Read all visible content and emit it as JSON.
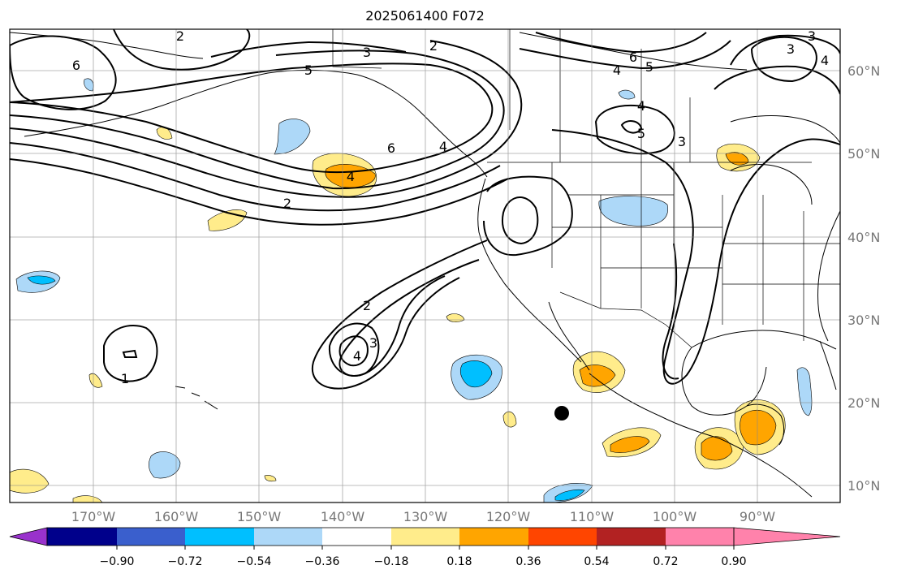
{
  "title": "2025061400 F072",
  "lon_labels": [
    "170°W",
    "160°W",
    "150°W",
    "140°W",
    "130°W",
    "120°W",
    "110°W",
    "100°W",
    "90°W"
  ],
  "lat_labels": [
    "60°N",
    "50°N",
    "40°N",
    "30°N",
    "20°N",
    "10°N"
  ],
  "colorbar": {
    "ticks": [
      "−0.90",
      "−0.72",
      "−0.54",
      "−0.36",
      "−0.18",
      "0.18",
      "0.36",
      "0.54",
      "0.72",
      "0.90"
    ],
    "colors": [
      "#9932cc",
      "#00008b",
      "#3a5fcd",
      "#00bfff",
      "#add8f8",
      "#ffffff",
      "#ffec8b",
      "#ffa500",
      "#ff4500",
      "#b22222",
      "#ff82ab"
    ]
  },
  "contour_labels": [
    "2",
    "3",
    "2",
    "6",
    "5",
    "4",
    "5",
    "3",
    "4",
    "5",
    "4",
    "6",
    "2",
    "4",
    "3",
    "2",
    "4",
    "3",
    "1",
    "6",
    "3",
    "4"
  ],
  "shade_colors": {
    "light_blue": "#add8f8",
    "blue": "#00bfff",
    "yellow": "#ffec8b",
    "orange": "#ffa500"
  }
}
